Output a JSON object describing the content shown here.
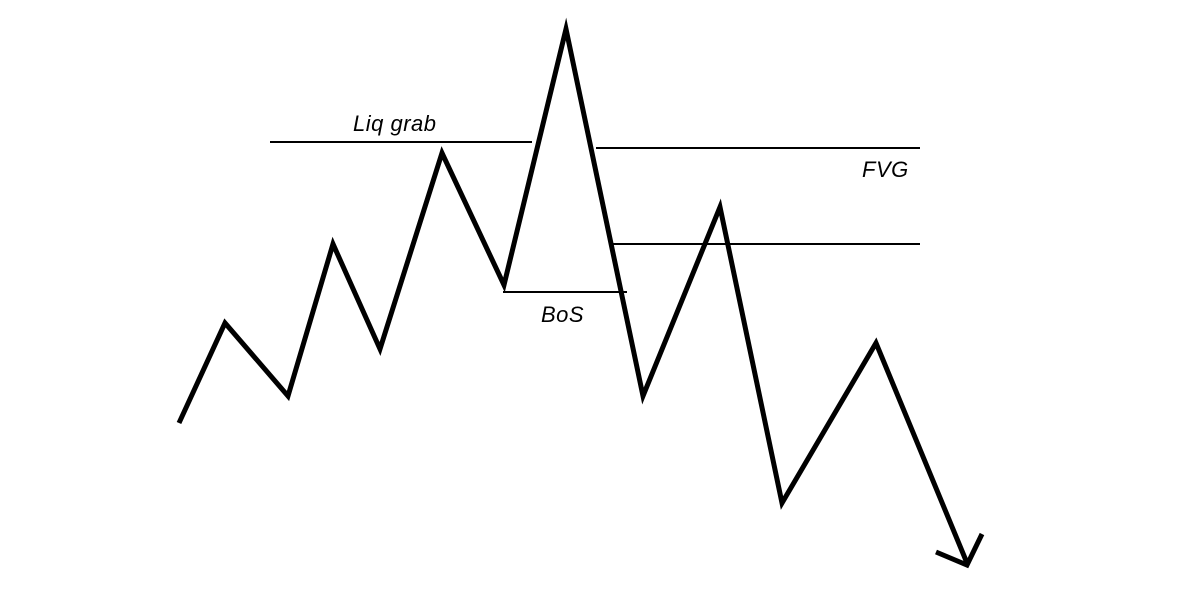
{
  "diagram": {
    "colors": {
      "ink": "#000000",
      "background": "#ffffff"
    },
    "labels": {
      "liq_grab": "Liq grab",
      "bos": "BoS",
      "fvg": "FVG"
    },
    "icons": {
      "trend_arrow": "arrow-down-right-icon"
    }
  }
}
